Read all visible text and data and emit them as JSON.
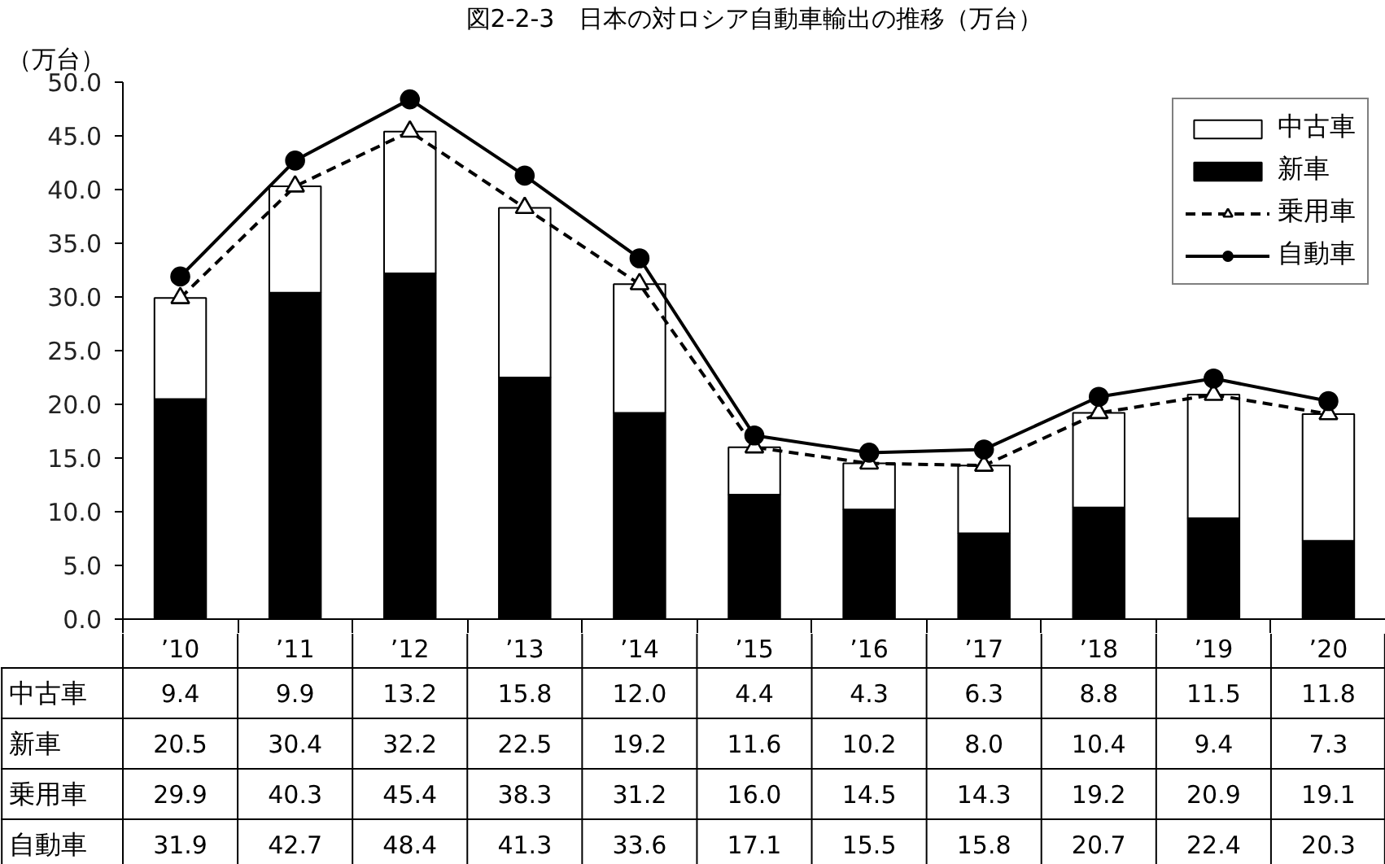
{
  "chart_data": {
    "type": "bar",
    "title": "図2-2-3　日本の対ロシア自動車輸出の推移（万台）",
    "ylabel": "（万台）",
    "categories": [
      "’10",
      "’11",
      "’12",
      "’13",
      "’14",
      "’15",
      "’16",
      "’17",
      "’18",
      "’19",
      "’20"
    ],
    "stacked": true,
    "series": [
      {
        "name": "新車",
        "color": "#000000",
        "values": [
          20.5,
          30.4,
          32.2,
          22.5,
          19.2,
          11.6,
          10.2,
          8.0,
          10.4,
          9.4,
          7.3
        ],
        "value_labels": [
          "20.5",
          "30.4",
          "32.2",
          "22.5",
          "19.2",
          "11.6",
          "10.2",
          "8.0",
          "10.4",
          "9.4",
          "7.3"
        ]
      },
      {
        "name": "中古車",
        "color": "#ffffff",
        "values": [
          9.4,
          9.9,
          13.2,
          15.8,
          12.0,
          4.4,
          4.3,
          6.3,
          8.8,
          11.5,
          11.8
        ],
        "value_labels": [
          "9.4",
          "9.9",
          "13.2",
          "15.8",
          "12.0",
          "4.4",
          "4.3",
          "6.3",
          "8.8",
          "11.5",
          "11.8"
        ]
      },
      {
        "name": "乗用車",
        "type": "line",
        "color": "#000000",
        "marker": "triangle",
        "line_style": "dashed",
        "values": [
          29.9,
          40.3,
          45.4,
          38.3,
          31.2,
          16.0,
          14.5,
          14.3,
          19.2,
          20.9,
          19.1
        ],
        "value_labels": [
          "29.9",
          "40.3",
          "45.4",
          "38.3",
          "31.2",
          "16.0",
          "14.5",
          "14.3",
          "19.2",
          "20.9",
          "19.1"
        ]
      },
      {
        "name": "自動車",
        "type": "line",
        "color": "#000000",
        "marker": "circle",
        "line_style": "solid",
        "values": [
          31.9,
          42.7,
          48.4,
          41.3,
          33.6,
          17.1,
          15.5,
          15.8,
          20.7,
          22.4,
          20.3
        ],
        "value_labels": [
          "31.9",
          "42.7",
          "48.4",
          "41.3",
          "33.6",
          "17.1",
          "15.5",
          "15.8",
          "20.7",
          "22.4",
          "20.3"
        ]
      }
    ],
    "ylim": [
      0,
      50
    ],
    "yticks": [
      {
        "value": 0,
        "label": "0.0"
      },
      {
        "value": 5,
        "label": "5.0"
      },
      {
        "value": 10,
        "label": "10.0"
      },
      {
        "value": 15,
        "label": "15.0"
      },
      {
        "value": 20,
        "label": "20.0"
      },
      {
        "value": 25,
        "label": "25.0"
      },
      {
        "value": 30,
        "label": "30.0"
      },
      {
        "value": 35,
        "label": "35.0"
      },
      {
        "value": 40,
        "label": "40.0"
      },
      {
        "value": 45,
        "label": "45.0"
      },
      {
        "value": 50,
        "label": "50.0"
      }
    ],
    "grid": false,
    "legend": "top right"
  }
}
